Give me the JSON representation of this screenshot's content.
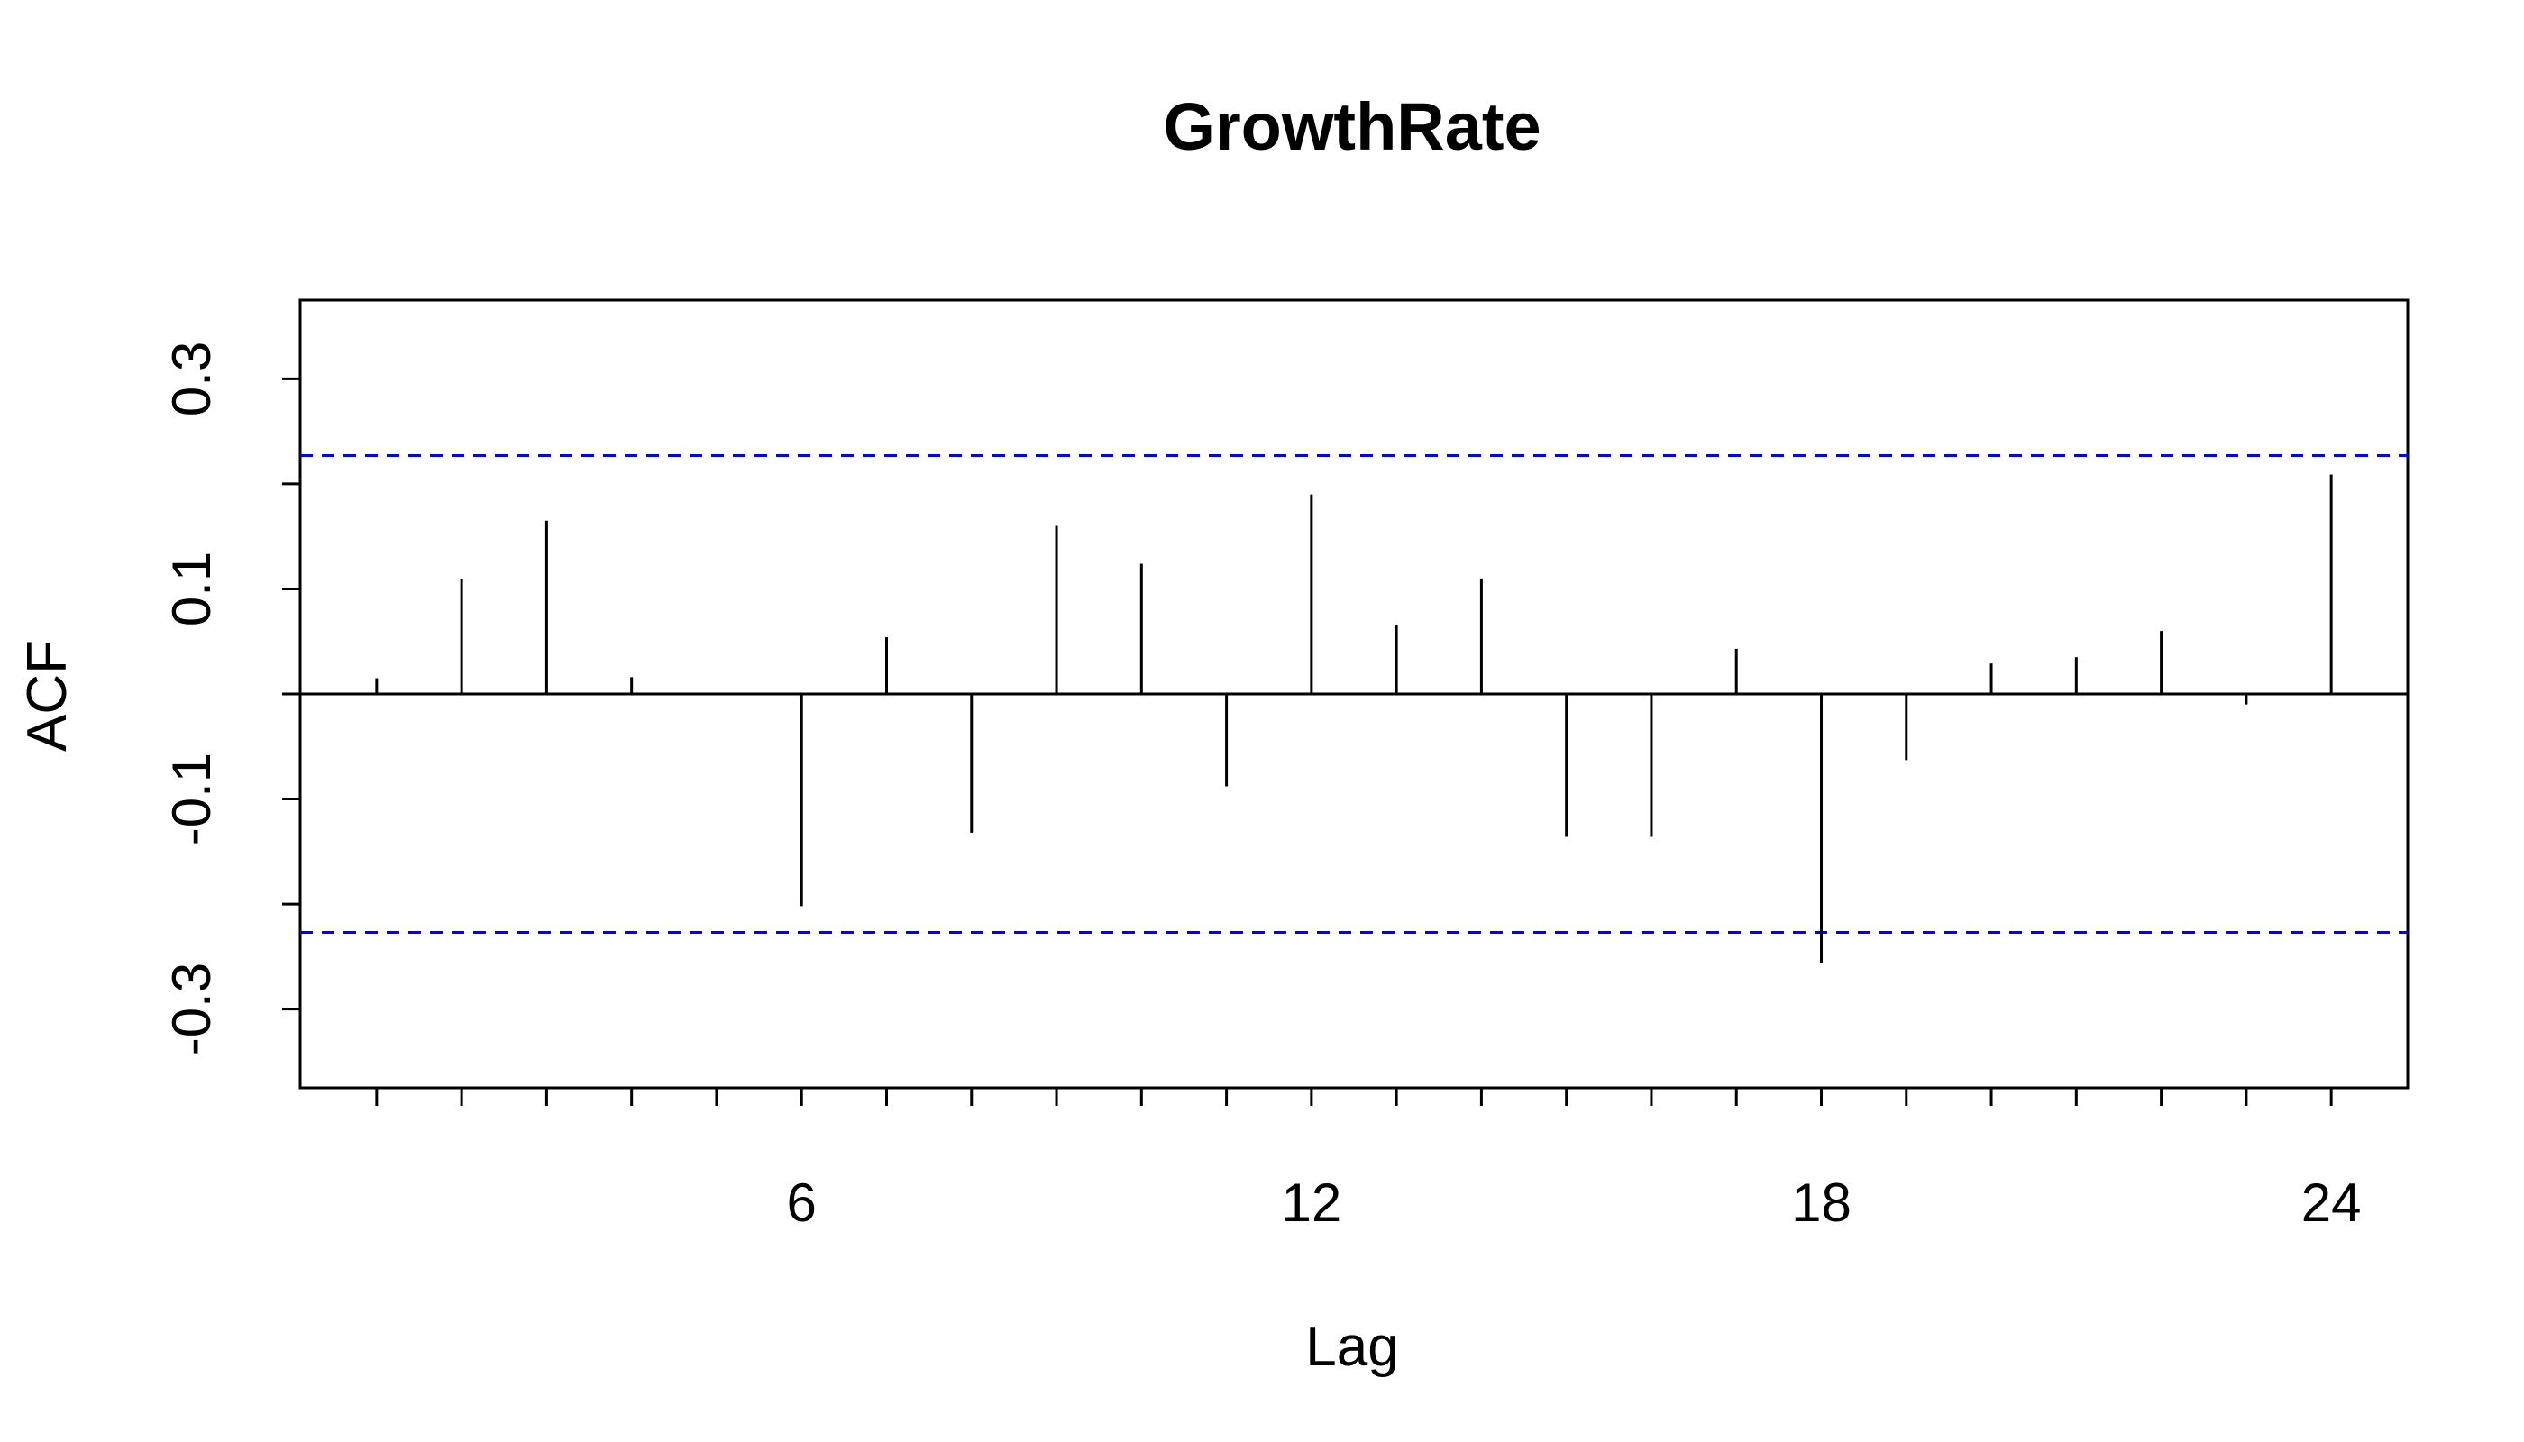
{
  "chart_data": {
    "type": "bar",
    "title": "GrowthRate",
    "xlabel": "Lag",
    "ylabel": "ACF",
    "x": [
      1,
      2,
      3,
      4,
      5,
      6,
      7,
      8,
      9,
      10,
      11,
      12,
      13,
      14,
      15,
      16,
      17,
      18,
      19,
      20,
      21,
      22,
      23,
      24
    ],
    "values": [
      0.015,
      0.11,
      0.165,
      0.016,
      0.001,
      -0.202,
      0.054,
      -0.132,
      0.16,
      0.124,
      -0.088,
      0.19,
      0.066,
      0.11,
      -0.136,
      -0.136,
      0.043,
      -0.256,
      -0.063,
      0.029,
      0.035,
      0.06,
      -0.01,
      0.209
    ],
    "xlim": [
      0.1,
      24.9
    ],
    "ylim": [
      -0.375,
      0.375
    ],
    "x_ticks_major": [
      6,
      12,
      18,
      24
    ],
    "x_ticks_minor": [
      1,
      2,
      3,
      4,
      5,
      7,
      8,
      9,
      10,
      11,
      13,
      14,
      15,
      16,
      17,
      19,
      20,
      21,
      22,
      23
    ],
    "x_tick_labels": [
      "6",
      "12",
      "18",
      "24"
    ],
    "y_ticks": [
      -0.3,
      -0.2,
      -0.1,
      0,
      0.1,
      0.2,
      0.3
    ],
    "y_tick_labels": [
      "-0.3",
      "-0.1",
      "0.1",
      "0.3"
    ],
    "y_tick_label_values": [
      -0.3,
      -0.1,
      0.1,
      0.3
    ],
    "confidence_bound": 0.227,
    "colors": {
      "bars": "#000000",
      "confidence": "#0000ff",
      "frame": "#000000"
    }
  }
}
